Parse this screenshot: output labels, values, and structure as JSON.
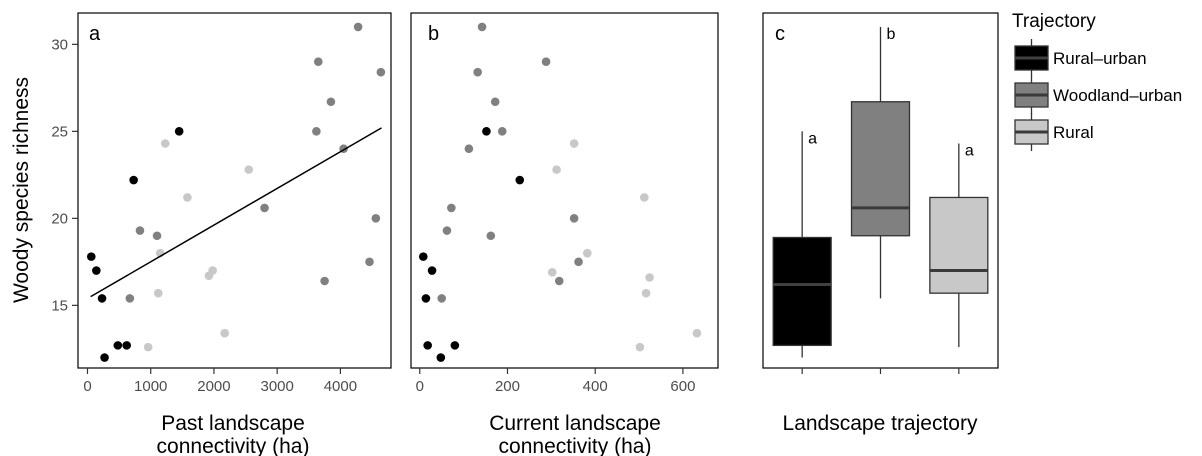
{
  "chart_data": [
    {
      "panel_label": "a",
      "type": "scatter",
      "xlabel": [
        "Past landscape",
        "connectivity (ha)"
      ],
      "ylabel": "Woody species richness",
      "xlim": [
        -150,
        4800
      ],
      "ylim": [
        11.4,
        31.8
      ],
      "xticks": [
        0,
        1000,
        2000,
        3000,
        4000
      ],
      "yticks": [
        15,
        20,
        25,
        30
      ],
      "grid": false,
      "series": [
        {
          "color": "#000000",
          "points": [
            [
              60,
              17.8
            ],
            [
              140,
              17.0
            ],
            [
              230,
              15.4
            ],
            [
              270,
              12.0
            ],
            [
              480,
              12.7
            ],
            [
              620,
              12.7
            ],
            [
              730,
              22.2
            ],
            [
              1450,
              25.0
            ]
          ]
        },
        {
          "color": "#808080",
          "points": [
            [
              670,
              15.4
            ],
            [
              830,
              19.3
            ],
            [
              1100,
              19.0
            ],
            [
              2800,
              20.6
            ],
            [
              3620,
              25.0
            ],
            [
              3650,
              29.0
            ],
            [
              3750,
              16.4
            ],
            [
              3850,
              26.7
            ],
            [
              4050,
              24.0
            ],
            [
              4280,
              31.0
            ],
            [
              4460,
              17.5
            ],
            [
              4560,
              20.0
            ],
            [
              4640,
              28.4
            ]
          ]
        },
        {
          "color": "#c8c8c8",
          "points": [
            [
              960,
              12.6
            ],
            [
              1120,
              15.7
            ],
            [
              1150,
              18.0
            ],
            [
              1230,
              24.3
            ],
            [
              1580,
              21.2
            ],
            [
              1920,
              16.7
            ],
            [
              1980,
              17.0
            ],
            [
              2170,
              13.4
            ],
            [
              2550,
              22.8
            ]
          ]
        }
      ],
      "trend_line": {
        "x": [
          50,
          4650
        ],
        "y": [
          15.5,
          25.2
        ]
      }
    },
    {
      "panel_label": "b",
      "type": "scatter",
      "xlabel": [
        "Current landscape",
        "connectivity (ha)"
      ],
      "xlim": [
        -20,
        680
      ],
      "ylim": [
        11.4,
        31.8
      ],
      "xticks": [
        0,
        200,
        400,
        600
      ],
      "grid": false,
      "series": [
        {
          "color": "#000000",
          "points": [
            [
              8,
              17.8
            ],
            [
              14,
              15.4
            ],
            [
              18,
              12.7
            ],
            [
              28,
              17.0
            ],
            [
              48,
              12.0
            ],
            [
              80,
              12.7
            ],
            [
              152,
              25.0
            ],
            [
              228,
              22.2
            ]
          ]
        },
        {
          "color": "#808080",
          "points": [
            [
              50,
              15.4
            ],
            [
              62,
              19.3
            ],
            [
              72,
              20.6
            ],
            [
              112,
              24.0
            ],
            [
              132,
              28.4
            ],
            [
              142,
              31.0
            ],
            [
              162,
              19.0
            ],
            [
              172,
              26.7
            ],
            [
              188,
              25.0
            ],
            [
              288,
              29.0
            ],
            [
              318,
              16.4
            ],
            [
              352,
              20.0
            ],
            [
              362,
              17.5
            ]
          ]
        },
        {
          "color": "#c8c8c8",
          "points": [
            [
              302,
              16.9
            ],
            [
              312,
              22.8
            ],
            [
              352,
              24.3
            ],
            [
              382,
              18.0
            ],
            [
              502,
              12.6
            ],
            [
              512,
              21.2
            ],
            [
              516,
              15.7
            ],
            [
              524,
              16.6
            ],
            [
              632,
              13.4
            ]
          ]
        }
      ]
    },
    {
      "panel_label": "c",
      "type": "box",
      "xlabel": "Landscape trajectory",
      "ylim": [
        11.4,
        31.8
      ],
      "boxes": [
        {
          "name": "Rural–urban",
          "color": "#000000",
          "median_color": "#404040",
          "whisker_low": 12.0,
          "q1": 12.7,
          "median": 16.2,
          "q3": 18.9,
          "whisker_high": 25.0,
          "letter": "a"
        },
        {
          "name": "Woodland–urban",
          "color": "#808080",
          "median_color": "#3a3a3a",
          "whisker_low": 15.4,
          "q1": 19.0,
          "median": 20.6,
          "q3": 26.7,
          "whisker_high": 31.0,
          "letter": "b"
        },
        {
          "name": "Rural",
          "color": "#c8c8c8",
          "median_color": "#3a3a3a",
          "whisker_low": 12.6,
          "q1": 15.7,
          "median": 17.0,
          "q3": 21.2,
          "whisker_high": 24.3,
          "letter": "a"
        }
      ]
    }
  ],
  "legend": {
    "title": "Trajectory",
    "placement": "right",
    "items": [
      {
        "label": "Rural–urban",
        "color": "#000000",
        "line_color": "#404040"
      },
      {
        "label": "Woodland–urban",
        "color": "#808080",
        "line_color": "#3a3a3a"
      },
      {
        "label": "Rural",
        "color": "#c8c8c8",
        "line_color": "#3a3a3a"
      }
    ]
  }
}
